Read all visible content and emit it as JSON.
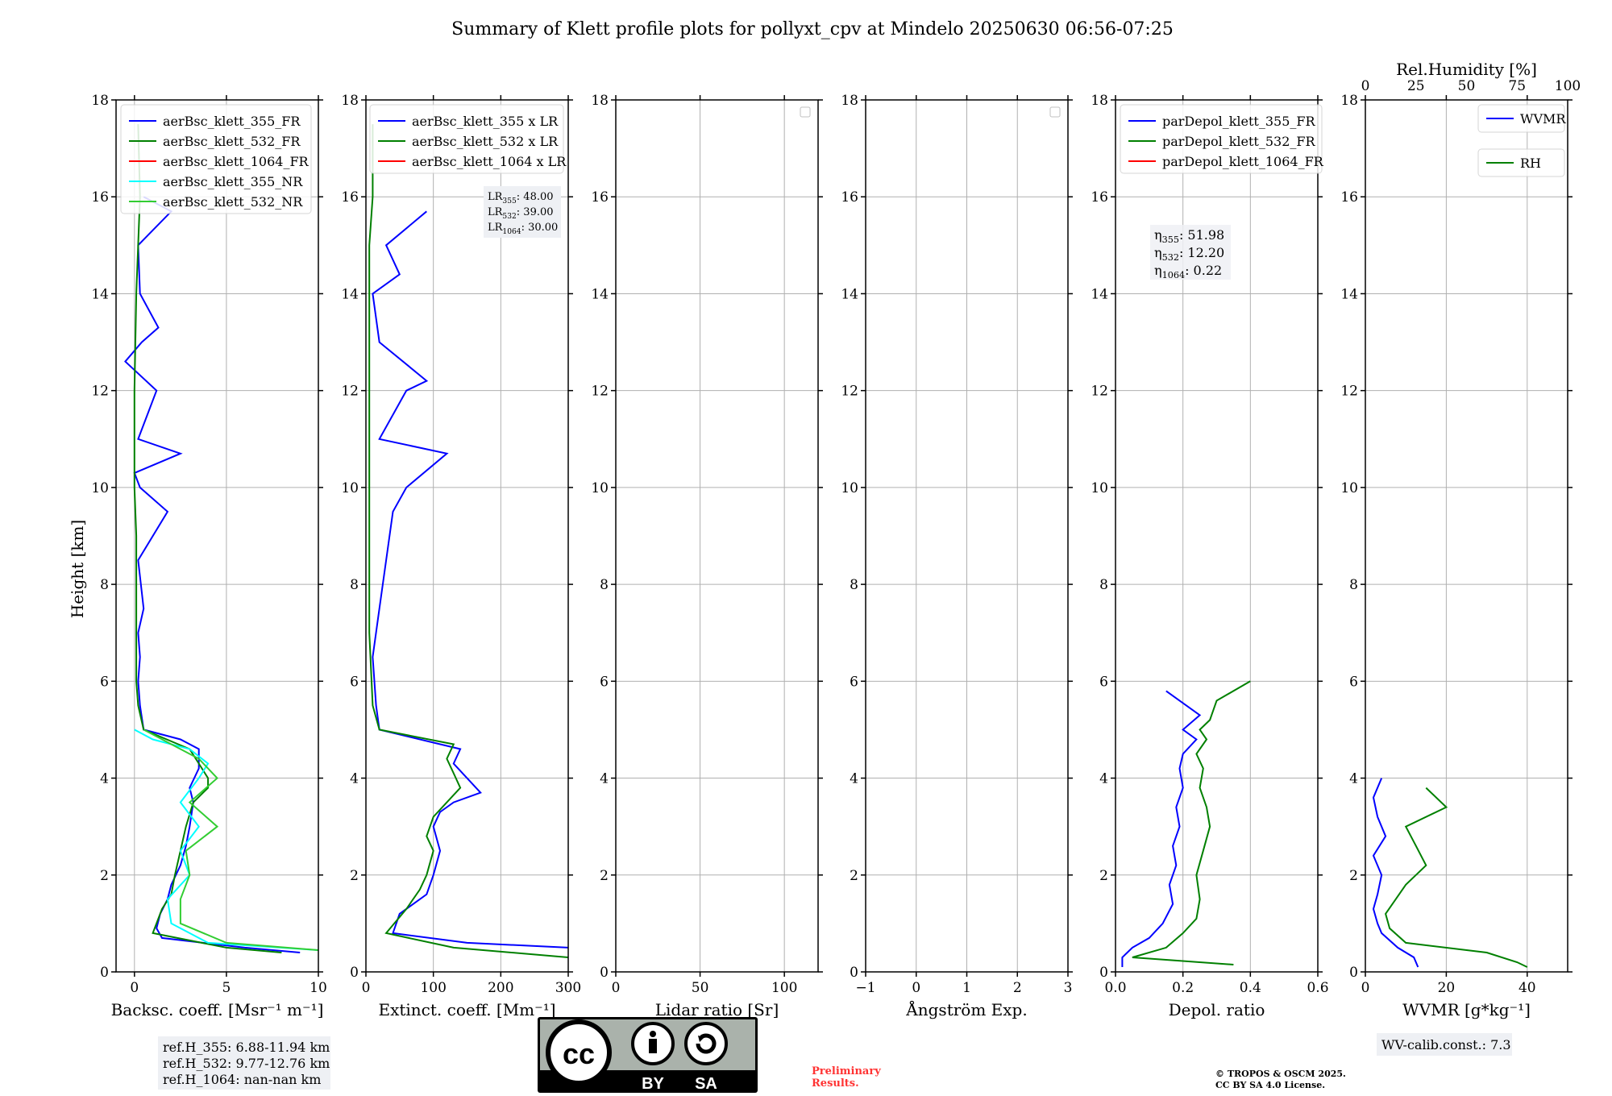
{
  "title": "Summary of Klett profile plots for pollyxt_cpv at Mindelo 20250630 06:56-07:25",
  "ylabel": "Height [km]",
  "chart_data": [
    {
      "type": "line",
      "xlabel": "Backsc. coeff. [Msr⁻¹ m⁻¹]",
      "xlim": [
        -1,
        10
      ],
      "ylim": [
        0,
        18
      ],
      "xticks": [
        0,
        5,
        10
      ],
      "yticks": [
        0,
        2,
        4,
        6,
        8,
        10,
        12,
        14,
        16,
        18
      ],
      "grid": true,
      "legend_position": "top-left",
      "series": [
        {
          "name": "aerBsc_klett_355_FR",
          "color": "#0000ff",
          "x": [
            9.0,
            6.0,
            1.5,
            1.2,
            1.4,
            1.8,
            2.0,
            2.5,
            2.8,
            3.0,
            3.2,
            3.0,
            3.5,
            3.5,
            2.5,
            0.5,
            0.3,
            0.2,
            0.3,
            0.2,
            0.5,
            0.2,
            1.8,
            0.3,
            0.0,
            2.5,
            0.2,
            1.2,
            -0.5,
            0.4,
            1.3,
            0.3,
            0.2,
            2.0,
            0.5
          ],
          "y": [
            0.4,
            0.5,
            0.7,
            0.9,
            1.2,
            1.5,
            1.8,
            2.2,
            2.6,
            3.0,
            3.5,
            3.8,
            4.2,
            4.6,
            4.8,
            5.0,
            5.5,
            6.0,
            6.5,
            7.0,
            7.5,
            8.5,
            9.5,
            10.0,
            10.3,
            10.7,
            11.0,
            12.0,
            12.6,
            13.0,
            13.3,
            14.0,
            15.0,
            15.7,
            16.0
          ]
        },
        {
          "name": "aerBsc_klett_532_FR",
          "color": "#008000",
          "x": [
            8.0,
            5.0,
            1.0,
            1.5,
            2.0,
            2.2,
            2.5,
            2.8,
            3.2,
            4.0,
            4.0,
            3.5,
            3.0,
            0.5,
            0.2,
            0.1,
            0.1,
            0.1,
            0.1,
            0.0,
            0.0,
            0.1,
            0.2,
            0.3,
            0.2
          ],
          "y": [
            0.4,
            0.5,
            0.8,
            1.3,
            1.6,
            2.0,
            2.5,
            3.0,
            3.5,
            3.8,
            4.0,
            4.3,
            4.6,
            5.0,
            5.5,
            6.0,
            7.0,
            8.0,
            9.0,
            10.0,
            12.0,
            14.0,
            15.0,
            16.0,
            17.5
          ]
        },
        {
          "name": "aerBsc_klett_1064_FR",
          "color": "#ff0000",
          "x": [],
          "y": []
        },
        {
          "name": "aerBsc_klett_355_NR",
          "color": "#00ffff",
          "x": [
            10.0,
            4.0,
            2.0,
            1.8,
            3.0,
            2.5,
            3.5,
            2.5,
            3.5,
            4.0,
            3.0,
            1.0,
            0.0
          ],
          "y": [
            0.45,
            0.6,
            1.0,
            1.5,
            2.0,
            2.5,
            3.0,
            3.5,
            4.0,
            4.3,
            4.6,
            4.8,
            5.0
          ]
        },
        {
          "name": "aerBsc_klett_532_NR",
          "color": "#32cd32",
          "x": [
            10.0,
            5.0,
            2.5,
            2.5,
            3.0,
            2.8,
            4.5,
            3.0,
            4.5,
            3.5,
            2.0,
            0.5
          ],
          "y": [
            0.45,
            0.6,
            1.0,
            1.5,
            2.0,
            2.5,
            3.0,
            3.5,
            4.0,
            4.4,
            4.7,
            5.0
          ]
        }
      ],
      "annotation": [
        "ref.H_355: 6.88-11.94 km",
        "ref.H_532: 9.77-12.76 km",
        "ref.H_1064: nan-nan km"
      ]
    },
    {
      "type": "line",
      "xlabel": "Extinct. coeff. [Mm⁻¹]",
      "xlim": [
        0,
        300
      ],
      "ylim": [
        0,
        18
      ],
      "xticks": [
        0,
        100,
        200,
        300
      ],
      "yticks": [
        0,
        2,
        4,
        6,
        8,
        10,
        12,
        14,
        16,
        18
      ],
      "grid": true,
      "legend_position": "top-right",
      "series": [
        {
          "name": "aerBsc_klett_355 x LR",
          "color": "#0000ff",
          "x": [
            300,
            150,
            40,
            50,
            90,
            100,
            110,
            100,
            110,
            130,
            170,
            150,
            130,
            140,
            20,
            15,
            10,
            20,
            30,
            40,
            60,
            120,
            20,
            60,
            90,
            20,
            10,
            50,
            30,
            90
          ],
          "y": [
            0.5,
            0.6,
            0.8,
            1.2,
            1.6,
            2.0,
            2.5,
            3.0,
            3.3,
            3.5,
            3.7,
            4.0,
            4.3,
            4.6,
            5.0,
            5.5,
            6.5,
            7.5,
            8.5,
            9.5,
            10.0,
            10.7,
            11.0,
            12.0,
            12.2,
            13.0,
            14.0,
            14.4,
            15.0,
            15.7
          ]
        },
        {
          "name": "aerBsc_klett_532 x LR",
          "color": "#008000",
          "x": [
            300,
            130,
            30,
            60,
            80,
            90,
            100,
            90,
            100,
            120,
            140,
            130,
            120,
            130,
            20,
            10,
            5,
            5,
            5,
            5,
            5,
            10,
            10
          ],
          "y": [
            0.3,
            0.5,
            0.8,
            1.3,
            1.7,
            2.0,
            2.5,
            2.8,
            3.2,
            3.5,
            3.8,
            4.1,
            4.4,
            4.7,
            5.0,
            5.5,
            7.0,
            9.0,
            11.0,
            13.0,
            15.0,
            16.0,
            17.5
          ]
        },
        {
          "name": "aerBsc_klett_1064 x LR",
          "color": "#ff0000",
          "x": [],
          "y": []
        }
      ],
      "annotation": [
        "LR355: 48.00",
        "LR532: 39.00",
        "LR1064: 30.00"
      ]
    },
    {
      "type": "line",
      "xlabel": "Lidar ratio [Sr]",
      "xlim": [
        0,
        120
      ],
      "ylim": [
        0,
        18
      ],
      "xticks": [
        0,
        50,
        100
      ],
      "yticks": [
        0,
        2,
        4,
        6,
        8,
        10,
        12,
        14,
        16,
        18
      ],
      "grid": true,
      "legend_position": "top-right",
      "series": []
    },
    {
      "type": "line",
      "xlabel": "Ångström Exp.",
      "xlim": [
        -1,
        3
      ],
      "ylim": [
        0,
        18
      ],
      "xticks": [
        -1,
        0,
        1,
        2,
        3
      ],
      "yticks": [
        0,
        2,
        4,
        6,
        8,
        10,
        12,
        14,
        16,
        18
      ],
      "grid": true,
      "legend_position": "top-right",
      "series": []
    },
    {
      "type": "line",
      "xlabel": "Depol. ratio",
      "xlim": [
        0,
        0.6
      ],
      "ylim": [
        0,
        18
      ],
      "xticks": [
        0.0,
        0.2,
        0.4,
        0.6
      ],
      "xtick_labels": [
        "0.0",
        "0.2",
        "0.4",
        "0.6"
      ],
      "yticks": [
        0,
        2,
        4,
        6,
        8,
        10,
        12,
        14,
        16,
        18
      ],
      "grid": true,
      "legend_position": "top-left",
      "series": [
        {
          "name": "parDepol_klett_355_FR",
          "color": "#0000ff",
          "x": [
            0.02,
            0.02,
            0.05,
            0.1,
            0.14,
            0.17,
            0.16,
            0.18,
            0.17,
            0.19,
            0.18,
            0.2,
            0.19,
            0.2,
            0.24,
            0.2,
            0.25,
            0.15
          ],
          "y": [
            0.1,
            0.3,
            0.5,
            0.7,
            1.0,
            1.4,
            1.8,
            2.2,
            2.6,
            3.0,
            3.4,
            3.8,
            4.2,
            4.5,
            4.8,
            5.0,
            5.3,
            5.8
          ]
        },
        {
          "name": "parDepol_klett_532_FR",
          "color": "#008000",
          "x": [
            0.35,
            0.05,
            0.15,
            0.2,
            0.24,
            0.25,
            0.24,
            0.26,
            0.28,
            0.27,
            0.25,
            0.26,
            0.24,
            0.27,
            0.25,
            0.28,
            0.3,
            0.4
          ],
          "y": [
            0.15,
            0.3,
            0.5,
            0.8,
            1.1,
            1.5,
            2.0,
            2.5,
            3.0,
            3.4,
            3.8,
            4.2,
            4.5,
            4.8,
            5.0,
            5.2,
            5.6,
            6.0
          ]
        },
        {
          "name": "parDepol_klett_1064_FR",
          "color": "#ff0000",
          "x": [],
          "y": []
        }
      ],
      "annotation": [
        "η355: 51.98",
        "η532: 12.20",
        "η1064: 0.22"
      ]
    },
    {
      "type": "line",
      "xlabel": "WVMR [g*kg⁻¹]",
      "xlim": [
        0,
        50
      ],
      "ylim": [
        0,
        18
      ],
      "xticks": [
        0,
        20,
        40
      ],
      "yticks": [
        0,
        2,
        4,
        6,
        8,
        10,
        12,
        14,
        16,
        18
      ],
      "top_axis": {
        "label": "Rel.Humidity [%]",
        "xlim": [
          0,
          100
        ],
        "xticks": [
          0,
          25,
          50,
          75,
          100
        ]
      },
      "grid": true,
      "legend_position": "top-right",
      "series": [
        {
          "name": "WVMR",
          "color": "#0000ff",
          "x": [
            13,
            12,
            8,
            4,
            3,
            2,
            3,
            4,
            2,
            5,
            3,
            2,
            4
          ],
          "y": [
            0.1,
            0.3,
            0.5,
            0.8,
            1.0,
            1.3,
            1.6,
            2.0,
            2.4,
            2.8,
            3.2,
            3.6,
            4.0
          ]
        },
        {
          "name": "RH",
          "color": "#008000",
          "x": [
            80,
            75,
            60,
            20,
            12,
            10,
            15,
            20,
            30,
            25,
            20,
            40,
            30
          ],
          "y": [
            0.1,
            0.2,
            0.4,
            0.6,
            0.9,
            1.2,
            1.5,
            1.8,
            2.2,
            2.6,
            3.0,
            3.4,
            3.8
          ]
        }
      ],
      "annotation": [
        "WV-calib.const.: 7.3"
      ]
    }
  ],
  "footer": {
    "preliminary": [
      "Preliminary",
      "Results."
    ],
    "copyright": [
      "© TROPOS & OSCM 2025.",
      "CC BY SA 4.0 License."
    ],
    "cc_badge": [
      "BY",
      "SA"
    ]
  }
}
